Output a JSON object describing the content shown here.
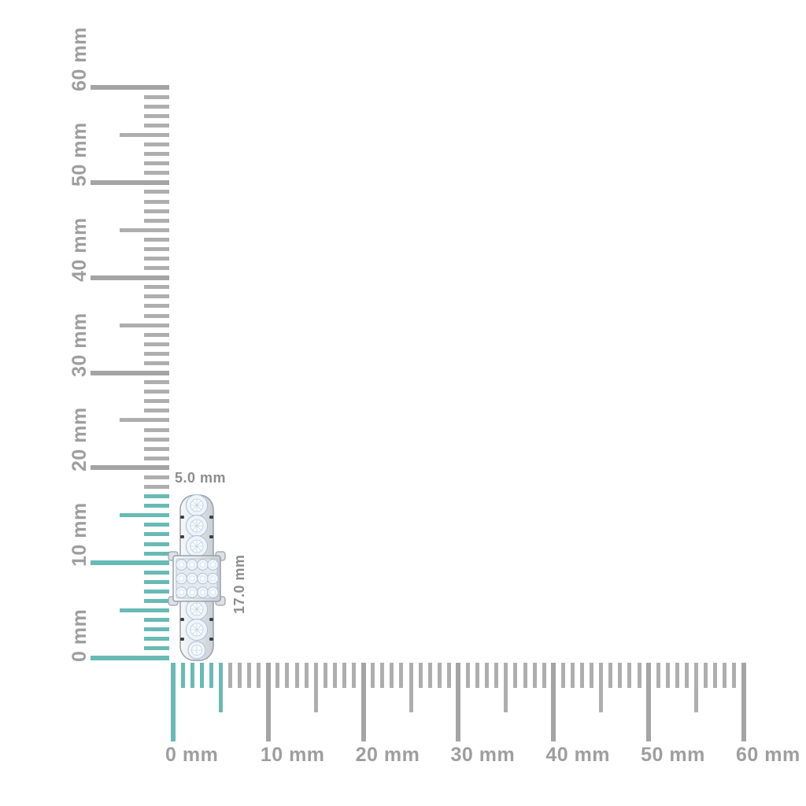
{
  "measurement": {
    "unit": "mm",
    "item_width_label": "5.0 mm",
    "item_height_label": "17.0 mm",
    "item_width_mm": 5.0,
    "item_height_mm": 17.0
  },
  "vertical_ruler": {
    "orientation": "vertical",
    "min_mm": 0,
    "max_mm": 60,
    "minor_step_mm": 1,
    "medium_step_mm": 5,
    "major_step_mm": 10,
    "labels": [
      "0 mm",
      "10 mm",
      "20 mm",
      "30 mm",
      "40 mm",
      "50 mm",
      "60 mm"
    ],
    "highlight_from_mm": 0,
    "highlight_to_mm": 17
  },
  "horizontal_ruler": {
    "orientation": "horizontal",
    "min_mm": 0,
    "max_mm": 60,
    "minor_step_mm": 1,
    "medium_step_mm": 5,
    "major_step_mm": 10,
    "labels": [
      "0 mm",
      "10 mm",
      "20 mm",
      "30 mm",
      "40 mm",
      "50 mm",
      "60 mm"
    ],
    "highlight_from_mm": 0,
    "highlight_to_mm": 5
  },
  "item": {
    "name": "diamond-ring-side-view",
    "description": "pave diamond band ring with square princess-cut cluster head, shown edge-on"
  },
  "colors": {
    "background": "#ffffff",
    "tick_gray": "#aeaeae",
    "tick_gray_major": "#a4a4a4",
    "highlight_teal": "#68bab4",
    "ruler_label_gray": "#9e9e9e",
    "dimension_label_gray": "#8d8d8d",
    "ring_metal_light": "#f6f8f9",
    "ring_metal_mid": "#d9dde2",
    "ring_metal_edge": "#99a1aa",
    "diamond_fill": "#eff4fa",
    "diamond_stroke": "#a9c0d4"
  }
}
